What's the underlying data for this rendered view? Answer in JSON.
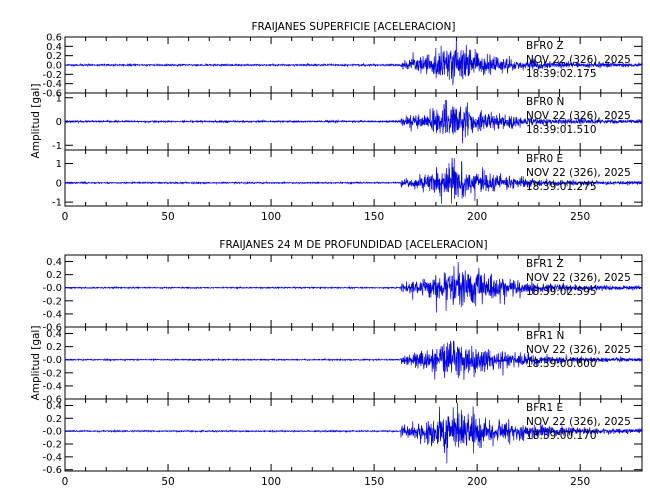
{
  "chart_data": [
    {
      "type": "line",
      "title": "FRAIJANES SUPERFICIE [ACELERACION]",
      "xlabel": "",
      "ylabel": "Amplitud [gal]",
      "xlim": [
        0,
        280
      ],
      "xticks": [
        "0",
        "50",
        "100",
        "150",
        "200",
        "250"
      ],
      "xtick_values": [
        0,
        50,
        100,
        150,
        200,
        250
      ],
      "grid": false,
      "line_color": "#0000dd",
      "series": [
        {
          "name": "BFR0 Z",
          "annotation": [
            "BFR0  Z",
            "NOV 22 (326), 2025",
            "18:39:02.175"
          ],
          "ylim": [
            -0.6,
            0.6
          ],
          "yticks": [
            "0.6",
            "0.4",
            "0.2",
            "0.0",
            "-0.2",
            "-0.4",
            "-0.6"
          ],
          "ytick_values": [
            0.6,
            0.4,
            0.2,
            0.0,
            -0.2,
            -0.4,
            -0.6
          ],
          "onset_s": 163,
          "peak_s": 188,
          "noise_amp": 0.015,
          "peak_amp": 0.6,
          "seed": 11
        },
        {
          "name": "BFR0 N",
          "annotation": [
            "BFR0  N",
            "NOV 22 (326), 2025",
            "18:39:01.510"
          ],
          "ylim": [
            -1.2,
            1.2
          ],
          "yticks": [
            "1",
            "0",
            "-1"
          ],
          "ytick_values": [
            1,
            0,
            -1
          ],
          "onset_s": 163,
          "peak_s": 188,
          "noise_amp": 0.03,
          "peak_amp": 1.1,
          "seed": 23
        },
        {
          "name": "BFR0 E",
          "annotation": [
            "BFR0  E",
            "NOV 22 (326), 2025",
            "18:39:01.275"
          ],
          "ylim": [
            -1.2,
            1.7
          ],
          "yticks": [
            "1",
            "0",
            "-1"
          ],
          "ytick_values": [
            1,
            0,
            -1
          ],
          "onset_s": 163,
          "peak_s": 188,
          "noise_amp": 0.03,
          "peak_amp": 1.3,
          "seed": 37
        }
      ]
    },
    {
      "type": "line",
      "title": "FRAIJANES 24 M DE PROFUNDIDAD [ACELERACION]",
      "xlabel": "",
      "ylabel": "Amplitud [gal]",
      "xlim": [
        0,
        280
      ],
      "xticks": [
        "0",
        "50",
        "100",
        "150",
        "200",
        "250"
      ],
      "xtick_values": [
        0,
        50,
        100,
        150,
        200,
        250
      ],
      "grid": false,
      "line_color": "#0000dd",
      "series": [
        {
          "name": "BFR1 Z",
          "annotation": [
            "BFR1  Z",
            "NOV 22 (326), 2025",
            "18:39:02.595"
          ],
          "ylim": [
            -0.6,
            0.5
          ],
          "yticks": [
            "0.4",
            "0.2",
            "-0.0",
            "-0.2",
            "-0.4",
            "-0.6"
          ],
          "ytick_values": [
            0.4,
            0.2,
            0.0,
            -0.2,
            -0.4,
            -0.6
          ],
          "onset_s": 163,
          "peak_s": 190,
          "noise_amp": 0.008,
          "peak_amp": 0.45,
          "seed": 41
        },
        {
          "name": "BFR1 N",
          "annotation": [
            "BFR1  N",
            "NOV 22 (326), 2025",
            "18:39:00.600"
          ],
          "ylim": [
            -0.6,
            0.5
          ],
          "yticks": [
            "0.4",
            "0.2",
            "-0.0",
            "-0.2",
            "-0.4",
            "-0.6"
          ],
          "ytick_values": [
            0.4,
            0.2,
            0.0,
            -0.2,
            -0.4,
            -0.6
          ],
          "onset_s": 163,
          "peak_s": 188,
          "noise_amp": 0.008,
          "peak_amp": 0.45,
          "seed": 53
        },
        {
          "name": "BFR1 E",
          "annotation": [
            "BFR1  E",
            "NOV 22 (326), 2025",
            "18:39:00.170"
          ],
          "ylim": [
            -0.62,
            0.5
          ],
          "yticks": [
            "0.4",
            "0.2",
            "-0.0",
            "-0.2",
            "-0.4",
            "-0.6"
          ],
          "ytick_values": [
            0.4,
            0.2,
            0.0,
            -0.2,
            -0.4,
            -0.6
          ],
          "onset_s": 163,
          "peak_s": 190,
          "noise_amp": 0.008,
          "peak_amp": 0.55,
          "seed": 67
        }
      ]
    }
  ]
}
